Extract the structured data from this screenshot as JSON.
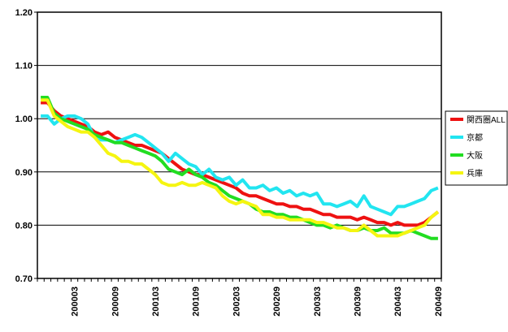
{
  "chart_data": {
    "type": "line",
    "categories": [
      null,
      null,
      null,
      null,
      null,
      "200003",
      null,
      null,
      null,
      null,
      null,
      "200009",
      null,
      null,
      null,
      null,
      null,
      "200103",
      null,
      null,
      null,
      null,
      null,
      "200109",
      null,
      null,
      null,
      null,
      null,
      "200203",
      null,
      null,
      null,
      null,
      null,
      "200209",
      null,
      null,
      null,
      null,
      null,
      "200303",
      null,
      null,
      null,
      null,
      null,
      "200309",
      null,
      null,
      null,
      null,
      null,
      "200403",
      null,
      null,
      null,
      null,
      null,
      "200409"
    ],
    "series": [
      {
        "name": "関西圏ALL",
        "color": "#ee1111",
        "values": [
          1.03,
          1.03,
          1.015,
          1.005,
          1.0,
          0.995,
          0.99,
          0.985,
          0.975,
          0.97,
          0.975,
          0.965,
          0.96,
          0.955,
          0.95,
          0.95,
          0.945,
          0.94,
          0.935,
          0.925,
          0.915,
          0.905,
          0.9,
          0.895,
          0.895,
          0.89,
          0.885,
          0.88,
          0.875,
          0.87,
          0.86,
          0.855,
          0.855,
          0.85,
          0.845,
          0.84,
          0.84,
          0.835,
          0.835,
          0.83,
          0.83,
          0.825,
          0.82,
          0.82,
          0.815,
          0.815,
          0.815,
          0.81,
          0.815,
          0.81,
          0.805,
          0.805,
          0.8,
          0.805,
          0.8,
          0.8,
          0.8,
          0.805,
          0.815,
          0.825
        ]
      },
      {
        "name": "京都",
        "color": "#22e5f0",
        "values": [
          1.005,
          1.005,
          0.99,
          1.0,
          1.005,
          1.005,
          1.0,
          0.99,
          0.965,
          0.96,
          0.96,
          0.955,
          0.96,
          0.965,
          0.97,
          0.965,
          0.955,
          0.945,
          0.935,
          0.92,
          0.935,
          0.925,
          0.915,
          0.91,
          0.895,
          0.905,
          0.89,
          0.885,
          0.89,
          0.875,
          0.885,
          0.87,
          0.87,
          0.875,
          0.865,
          0.87,
          0.86,
          0.865,
          0.855,
          0.86,
          0.855,
          0.86,
          0.84,
          0.84,
          0.835,
          0.84,
          0.845,
          0.835,
          0.855,
          0.835,
          0.83,
          0.825,
          0.82,
          0.835,
          0.835,
          0.84,
          0.845,
          0.85,
          0.865,
          0.87
        ]
      },
      {
        "name": "大阪",
        "color": "#22dd22",
        "values": [
          1.04,
          1.04,
          1.01,
          1.0,
          0.995,
          0.99,
          0.985,
          0.98,
          0.97,
          0.965,
          0.96,
          0.955,
          0.955,
          0.95,
          0.945,
          0.94,
          0.935,
          0.93,
          0.92,
          0.905,
          0.9,
          0.895,
          0.905,
          0.895,
          0.89,
          0.88,
          0.875,
          0.865,
          0.855,
          0.85,
          0.845,
          0.84,
          0.83,
          0.825,
          0.825,
          0.82,
          0.82,
          0.815,
          0.815,
          0.81,
          0.805,
          0.8,
          0.8,
          0.795,
          0.8,
          0.795,
          0.79,
          0.79,
          0.795,
          0.79,
          0.79,
          0.795,
          0.785,
          0.785,
          0.785,
          0.79,
          0.785,
          0.78,
          0.775,
          0.775
        ]
      },
      {
        "name": "兵庫",
        "color": "#f5f511",
        "values": [
          1.035,
          1.035,
          1.005,
          0.995,
          0.985,
          0.98,
          0.975,
          0.975,
          0.965,
          0.95,
          0.935,
          0.93,
          0.92,
          0.92,
          0.915,
          0.915,
          0.905,
          0.895,
          0.88,
          0.875,
          0.875,
          0.88,
          0.875,
          0.875,
          0.88,
          0.875,
          0.87,
          0.855,
          0.845,
          0.84,
          0.845,
          0.84,
          0.835,
          0.82,
          0.82,
          0.815,
          0.815,
          0.81,
          0.81,
          0.81,
          0.81,
          0.805,
          0.805,
          0.8,
          0.795,
          0.795,
          0.79,
          0.79,
          0.8,
          0.79,
          0.78,
          0.78,
          0.78,
          0.78,
          0.785,
          0.79,
          0.795,
          0.8,
          0.815,
          0.825
        ]
      }
    ],
    "ylim": [
      0.7,
      1.2
    ],
    "yticks": [
      {
        "value": 0.7,
        "label": "0.70"
      },
      {
        "value": 0.8,
        "label": "0.80"
      },
      {
        "value": 0.9,
        "label": "0.90"
      },
      {
        "value": 1.0,
        "label": "1.00"
      },
      {
        "value": 1.1,
        "label": "1.10"
      },
      {
        "value": 1.2,
        "label": "1.20"
      }
    ],
    "grid": true,
    "legend": "right"
  }
}
